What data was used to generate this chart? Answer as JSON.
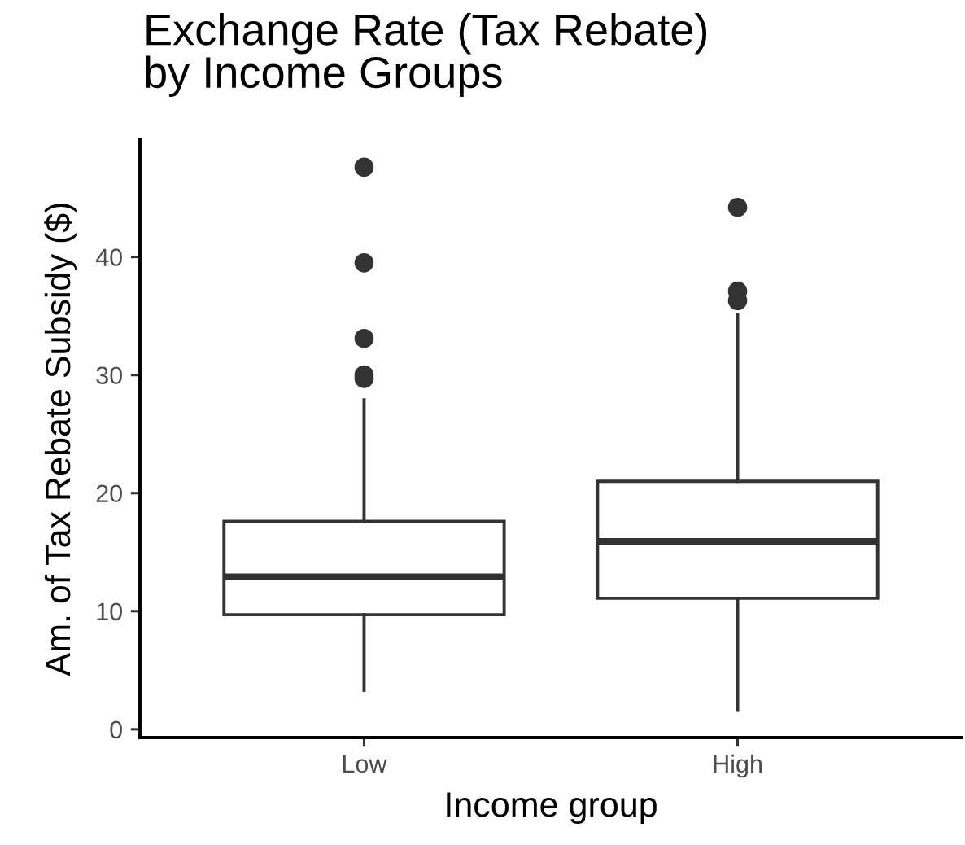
{
  "chart_data": {
    "type": "box",
    "title": "Exchange Rate (Tax Rebate)\nby Income Groups",
    "xlabel": "Income group",
    "ylabel": "Am. of Tax Rebate Subsidy ($)",
    "categories": [
      "Low",
      "High"
    ],
    "boxes": [
      {
        "low": 3.3,
        "q1": 9.7,
        "median": 12.9,
        "q3": 17.6,
        "high": 27.9,
        "outliers": [
          29.7,
          30.0,
          33.1,
          39.5,
          47.6
        ]
      },
      {
        "low": 1.6,
        "q1": 11.1,
        "median": 15.9,
        "q3": 21.0,
        "high": 35.1,
        "outliers": [
          36.3,
          37.1,
          44.2
        ]
      }
    ],
    "color": "#333333",
    "ylim": [
      -0.7,
      49.9
    ],
    "yticks": [
      0,
      10,
      20,
      30,
      40
    ],
    "grid": false
  }
}
